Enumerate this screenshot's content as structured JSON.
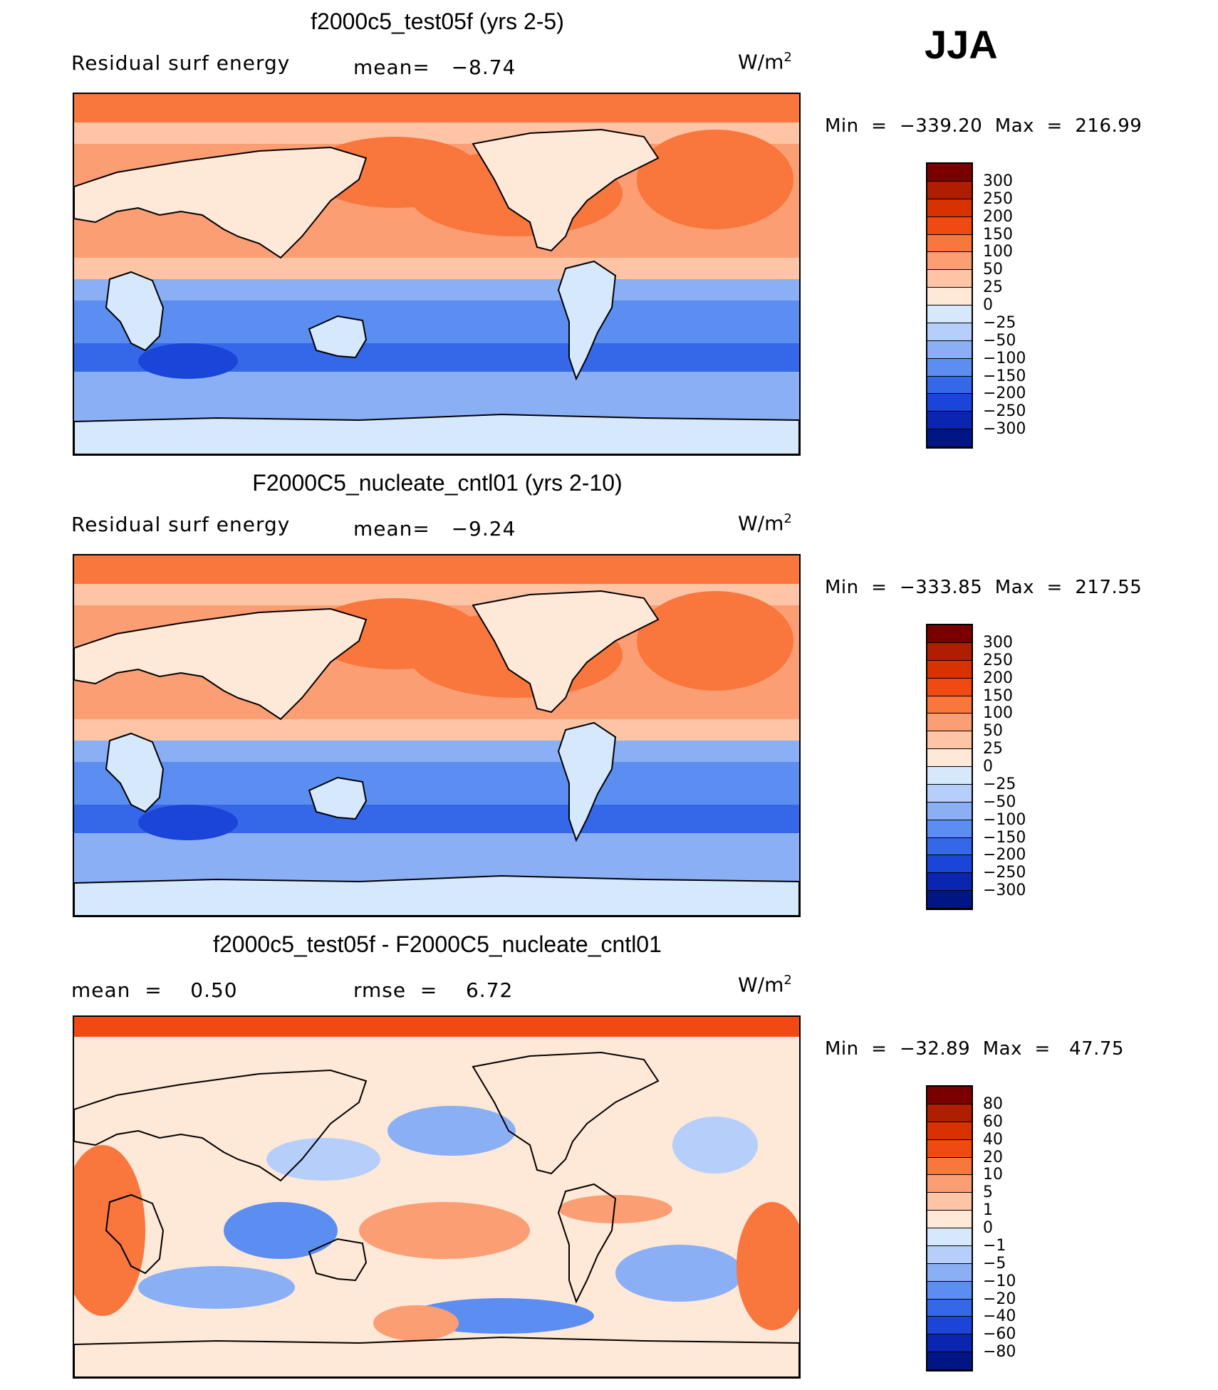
{
  "season": "JJA",
  "panels": [
    {
      "title": "f2000c5_test05f (yrs 2-5)",
      "left_label": "Residual surf energy",
      "stat_label": "mean=",
      "stat_value": "−8.74",
      "units_base": "W/m",
      "units_exp": "2",
      "minmax": "Min  =  −339.20  Max  =  216.99",
      "colorbar": {
        "levels": [
          "300",
          "250",
          "200",
          "150",
          "100",
          "50",
          "25",
          "0",
          "−25",
          "−50",
          "−100",
          "−150",
          "−200",
          "−250",
          "−300"
        ],
        "colors": [
          "#7a0000",
          "#b01e00",
          "#d83200",
          "#f04a12",
          "#f9763c",
          "#fc9e74",
          "#fdc4a6",
          "#fee8d8",
          "#d6e8fb",
          "#b5cffa",
          "#8aaff5",
          "#5b8ef0",
          "#3568e8",
          "#1a45d8",
          "#0a26b0",
          "#001685"
        ]
      }
    },
    {
      "title": "F2000C5_nucleate_cntl01 (yrs 2-10)",
      "left_label": "Residual surf energy",
      "stat_label": "mean=",
      "stat_value": "−9.24",
      "units_base": "W/m",
      "units_exp": "2",
      "minmax": "Min  =  −333.85  Max  =  217.55",
      "colorbar": {
        "levels": [
          "300",
          "250",
          "200",
          "150",
          "100",
          "50",
          "25",
          "0",
          "−25",
          "−50",
          "−100",
          "−150",
          "−200",
          "−250",
          "−300"
        ],
        "colors": [
          "#7a0000",
          "#b01e00",
          "#d83200",
          "#f04a12",
          "#f9763c",
          "#fc9e74",
          "#fdc4a6",
          "#fee8d8",
          "#d6e8fb",
          "#b5cffa",
          "#8aaff5",
          "#5b8ef0",
          "#3568e8",
          "#1a45d8",
          "#0a26b0",
          "#001685"
        ]
      }
    },
    {
      "title": "f2000c5_test05f - F2000C5_nucleate_cntl01",
      "left_label": "mean  =",
      "left_value": "0.50",
      "stat_label": "rmse  =",
      "stat_value": "6.72",
      "units_base": "W/m",
      "units_exp": "2",
      "minmax": "Min  =  −32.89  Max  =   47.75",
      "colorbar": {
        "levels": [
          "80",
          "60",
          "40",
          "20",
          "10",
          "5",
          "1",
          "0",
          "−1",
          "−5",
          "−10",
          "−20",
          "−40",
          "−60",
          "−80"
        ],
        "colors": [
          "#7a0000",
          "#b01e00",
          "#d83200",
          "#f04a12",
          "#f9763c",
          "#fc9e74",
          "#fdc4a6",
          "#fee8d8",
          "#d6e8fb",
          "#b5cffa",
          "#8aaff5",
          "#5b8ef0",
          "#3568e8",
          "#1a45d8",
          "#0a26b0",
          "#001685"
        ]
      }
    }
  ],
  "map_palette": {
    "ocean_north": "#f9763c",
    "ocean_subtrop": "#fc9e74",
    "land_north": "#fee8d8",
    "land_south": "#d6e8fb",
    "ocean_south": "#5b8ef0",
    "ocean_south_deep": "#3568e8",
    "ocean_south_mid": "#8aaff5",
    "arctic": "#fdc4a6",
    "antarctica": "#d6e8fb"
  }
}
